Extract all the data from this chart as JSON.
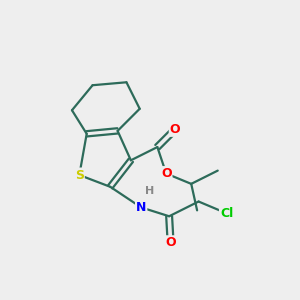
{
  "background_color": "#eeeeee",
  "bond_color": "#2d6b5a",
  "atom_colors": {
    "O": "#ff0000",
    "S": "#cccc00",
    "N": "#0000ff",
    "Cl": "#00cc00",
    "H": "#888888",
    "C": "#2d6b5a"
  },
  "figsize": [
    3.0,
    3.0
  ],
  "dpi": 100
}
